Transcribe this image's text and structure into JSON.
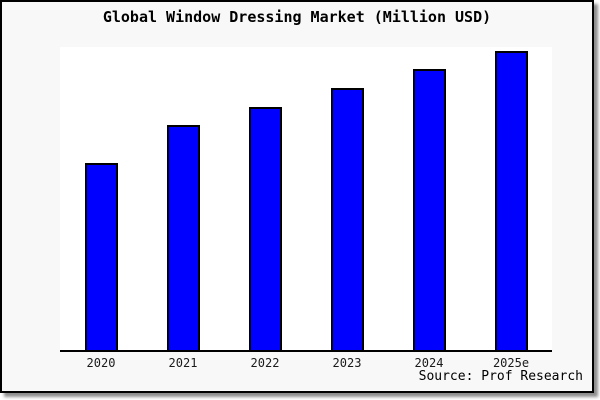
{
  "chart": {
    "title": "Global Window Dressing Market (Million USD)",
    "source_label": "Source: Prof Research"
  },
  "chart_data": {
    "type": "bar",
    "title": "Global Window Dressing Market (Million USD)",
    "categories": [
      "2020",
      "2021",
      "2022",
      "2023",
      "2024",
      "2025e"
    ],
    "values_pct_of_plot_height": [
      61.8,
      74.2,
      80.3,
      86.6,
      92.7,
      98.7
    ],
    "value_units": "relative bar height, % of plot area (no numeric y-axis labels shown in chart)",
    "xlabel": "",
    "ylabel": "",
    "grid": false,
    "legend": false,
    "y_axis_tick_labels": "none",
    "annotation": "Source: Prof Research",
    "bar_color": "#0000ff",
    "bar_border_color": "#000000",
    "background_color": "#f8f8f8",
    "plot_background_color": "#ffffff"
  }
}
